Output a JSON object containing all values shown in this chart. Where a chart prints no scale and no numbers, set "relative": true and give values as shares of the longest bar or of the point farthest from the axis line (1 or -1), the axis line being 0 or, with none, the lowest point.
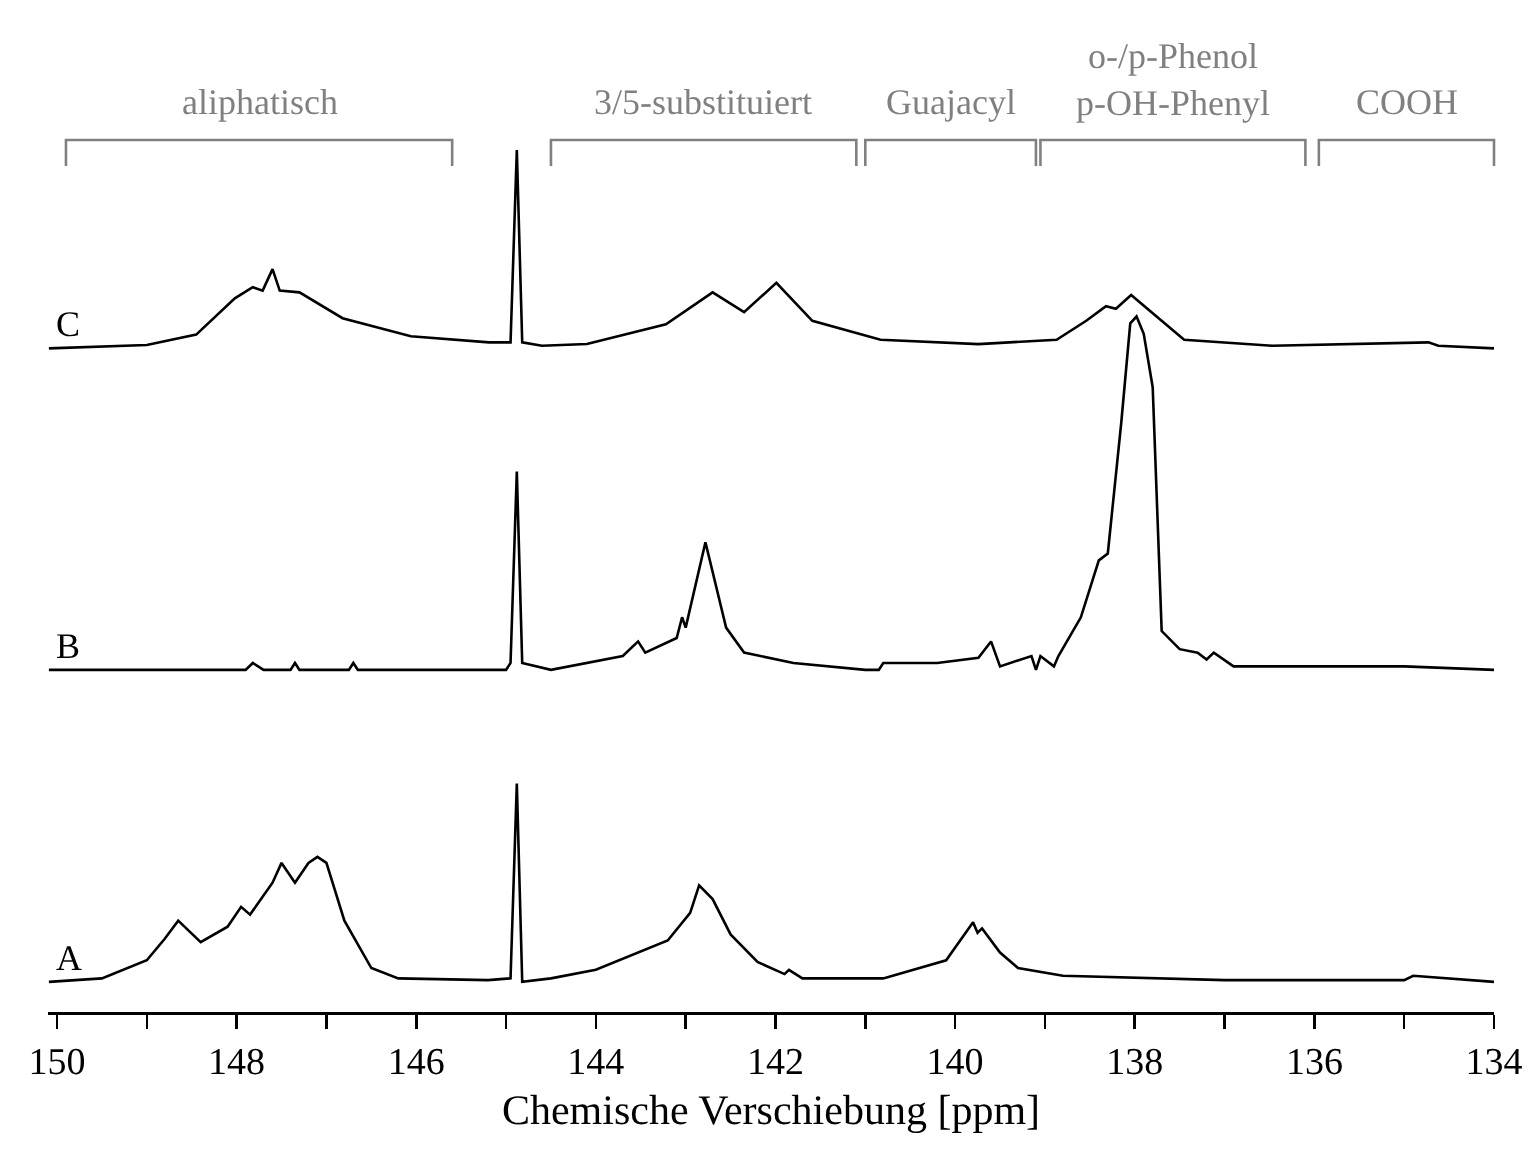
{
  "chart_data": {
    "type": "line",
    "relative": true,
    "xlim": [
      150.1,
      134
    ],
    "xlabel": "Chemische Verschiebung [ppm]",
    "xticks": [
      150,
      {
        "value": 149,
        "label": null
      },
      148,
      {
        "value": 147,
        "label": null
      },
      146,
      {
        "value": 145,
        "label": null
      },
      144,
      {
        "value": 143,
        "label": null
      },
      142,
      {
        "value": 141,
        "label": null
      },
      140,
      {
        "value": 139,
        "label": null
      },
      138,
      {
        "value": 137,
        "label": null
      },
      136,
      {
        "value": 135,
        "label": null
      },
      134
    ],
    "annotations": [
      "aliphatisch",
      "3/5-substituiert",
      "Guajacyl",
      "o-/p-Phenol\np-OH-Phenyl",
      "COOH"
    ],
    "series": [
      {
        "name": "C",
        "color": "#000000",
        "x": [
          150.09,
          149.0,
          148.45,
          148.02,
          147.82,
          147.71,
          147.6,
          147.52,
          147.3,
          146.82,
          146.06,
          145.19,
          144.95,
          144.88,
          144.82,
          144.6,
          144.1,
          143.22,
          142.7,
          142.35,
          141.99,
          141.59,
          140.83,
          139.74,
          138.87,
          138.54,
          138.32,
          138.21,
          138.04,
          137.78,
          137.45,
          136.47,
          134.73,
          134.62,
          134.0
        ],
        "values": [
          0.77,
          0.774,
          0.786,
          0.828,
          0.841,
          0.837,
          0.862,
          0.837,
          0.835,
          0.805,
          0.784,
          0.777,
          0.777,
          1.0,
          0.777,
          0.773,
          0.775,
          0.798,
          0.835,
          0.812,
          0.846,
          0.802,
          0.78,
          0.775,
          0.78,
          0.802,
          0.819,
          0.816,
          0.832,
          0.809,
          0.78,
          0.773,
          0.777,
          0.773,
          0.77
        ]
      },
      {
        "name": "B",
        "color": "#000000",
        "x": [
          150.09,
          147.9,
          147.82,
          147.7,
          147.4,
          147.35,
          147.3,
          146.75,
          146.7,
          146.65,
          145.0,
          144.95,
          144.88,
          144.82,
          144.5,
          143.7,
          143.53,
          143.45,
          143.1,
          143.04,
          143.0,
          142.78,
          142.55,
          142.35,
          141.8,
          141.0,
          140.85,
          140.8,
          140.2,
          139.74,
          139.6,
          139.5,
          139.15,
          139.1,
          139.05,
          138.9,
          138.85,
          138.6,
          138.4,
          138.3,
          138.15,
          138.05,
          137.98,
          137.9,
          137.8,
          137.7,
          137.5,
          137.3,
          137.2,
          137.12,
          136.9,
          135.0,
          134.0
        ],
        "values": [
          0.397,
          0.397,
          0.405,
          0.397,
          0.397,
          0.405,
          0.397,
          0.397,
          0.405,
          0.397,
          0.397,
          0.405,
          0.627,
          0.405,
          0.397,
          0.413,
          0.43,
          0.417,
          0.434,
          0.458,
          0.446,
          0.545,
          0.446,
          0.417,
          0.405,
          0.397,
          0.397,
          0.405,
          0.405,
          0.411,
          0.43,
          0.401,
          0.413,
          0.397,
          0.413,
          0.401,
          0.413,
          0.458,
          0.524,
          0.532,
          0.684,
          0.799,
          0.807,
          0.787,
          0.725,
          0.442,
          0.421,
          0.417,
          0.409,
          0.417,
          0.401,
          0.401,
          0.397
        ]
      },
      {
        "name": "A",
        "color": "#000000",
        "x": [
          150.09,
          149.5,
          149.0,
          148.8,
          148.65,
          148.4,
          148.1,
          147.95,
          147.85,
          147.6,
          147.5,
          147.35,
          147.2,
          147.1,
          147.0,
          146.8,
          146.5,
          146.2,
          145.2,
          144.95,
          144.88,
          144.82,
          144.5,
          144.0,
          143.2,
          142.95,
          142.85,
          142.7,
          142.5,
          142.2,
          141.9,
          141.85,
          141.7,
          140.8,
          140.1,
          139.8,
          139.75,
          139.7,
          139.5,
          139.3,
          138.8,
          137.0,
          135.0,
          134.9,
          134.0
        ],
        "values": [
          0.035,
          0.039,
          0.06,
          0.085,
          0.106,
          0.081,
          0.099,
          0.122,
          0.113,
          0.15,
          0.173,
          0.15,
          0.173,
          0.18,
          0.173,
          0.106,
          0.051,
          0.039,
          0.037,
          0.039,
          0.265,
          0.035,
          0.039,
          0.049,
          0.083,
          0.115,
          0.147,
          0.131,
          0.09,
          0.058,
          0.044,
          0.049,
          0.039,
          0.039,
          0.06,
          0.104,
          0.092,
          0.097,
          0.069,
          0.051,
          0.042,
          0.037,
          0.037,
          0.042,
          0.035
        ]
      }
    ]
  }
}
